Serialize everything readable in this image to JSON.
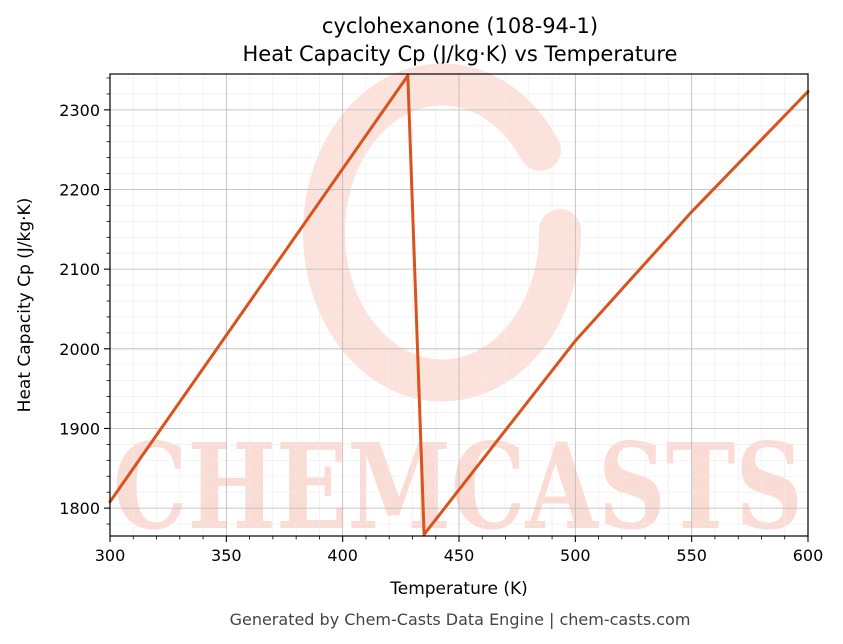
{
  "chart_data": {
    "type": "line",
    "title": "cyclohexanone (108-94-1)",
    "subtitle": "Heat Capacity Cp (J/kg·K) vs Temperature",
    "xlabel": "Temperature (K)",
    "ylabel": "Heat Capacity Cp (J/kg·K)",
    "xlim": [
      300,
      600
    ],
    "ylim": [
      1765,
      2345
    ],
    "x_ticks": [
      300,
      350,
      400,
      450,
      500,
      550,
      600
    ],
    "y_ticks": [
      1800,
      1900,
      2000,
      2100,
      2200,
      2300
    ],
    "grid": true,
    "series": [
      {
        "color": "#d9531e",
        "points": [
          {
            "x": 300,
            "y": 1808
          },
          {
            "x": 428,
            "y": 2343
          },
          {
            "x": 435,
            "y": 1767
          },
          {
            "x": 500,
            "y": 2010
          },
          {
            "x": 550,
            "y": 2172
          },
          {
            "x": 600,
            "y": 2323
          }
        ]
      }
    ]
  },
  "watermark": {
    "text": "CHEMCASTS",
    "color": "#fbd9d2"
  },
  "footer": "Generated by Chem-Casts Data Engine | chem-casts.com"
}
